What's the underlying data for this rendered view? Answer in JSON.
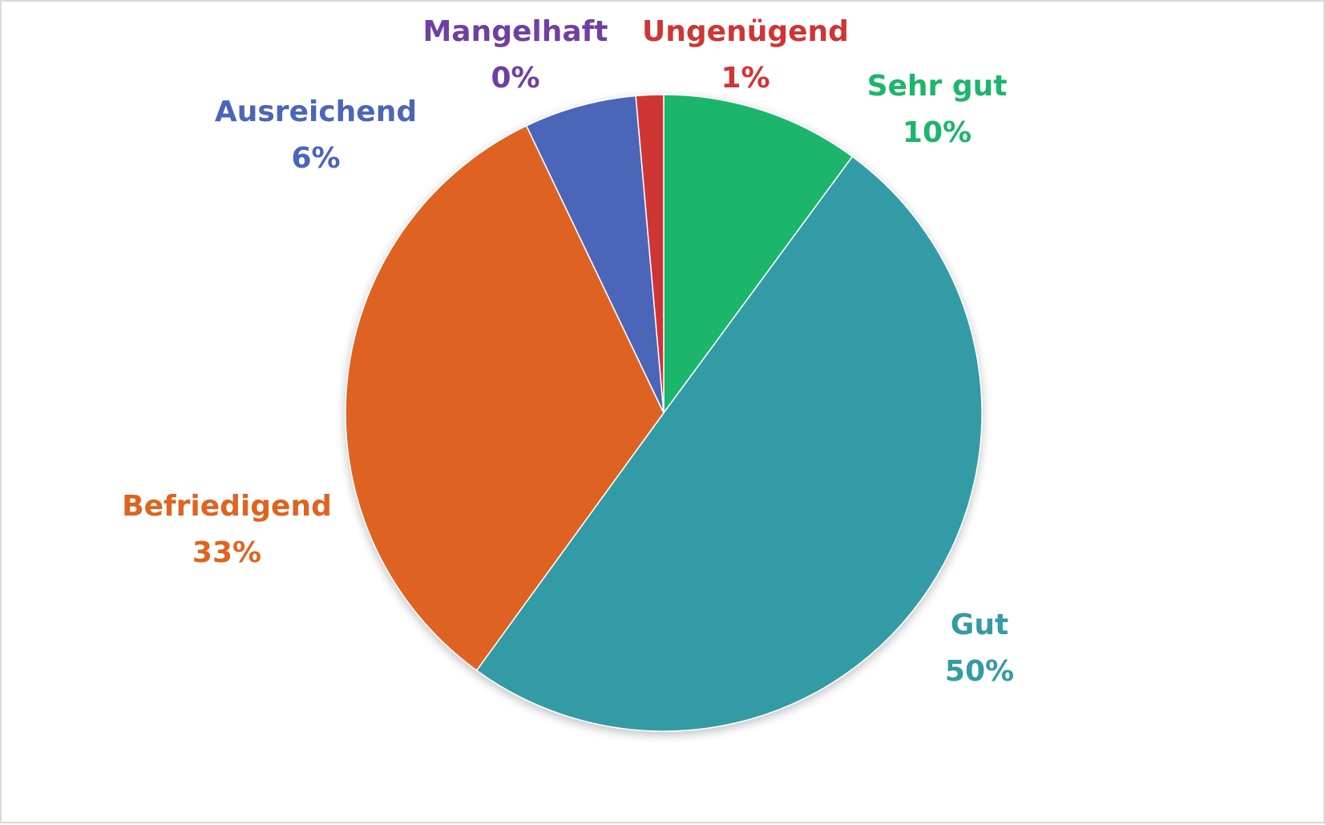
{
  "chart_data": {
    "type": "pie",
    "start_angle": "top, clockwise",
    "legend": "none",
    "slices": [
      {
        "name": "Sehr gut",
        "value": 10.1,
        "label": "10%",
        "color": "#1db56c"
      },
      {
        "name": "Gut",
        "value": 49.9,
        "label": "50%",
        "color": "#339ba5"
      },
      {
        "name": "Befriedigend",
        "value": 32.9,
        "label": "33%",
        "color": "#de6420"
      },
      {
        "name": "Ausreichend",
        "value": 5.7,
        "label": "6%",
        "color": "#4b65b9"
      },
      {
        "name": "Mangelhaft",
        "value": 0,
        "label": "0%",
        "color": "#7040a0"
      },
      {
        "name": "Ungenügend",
        "value": 1.4,
        "label": "1%",
        "color": "#d03535"
      }
    ]
  }
}
